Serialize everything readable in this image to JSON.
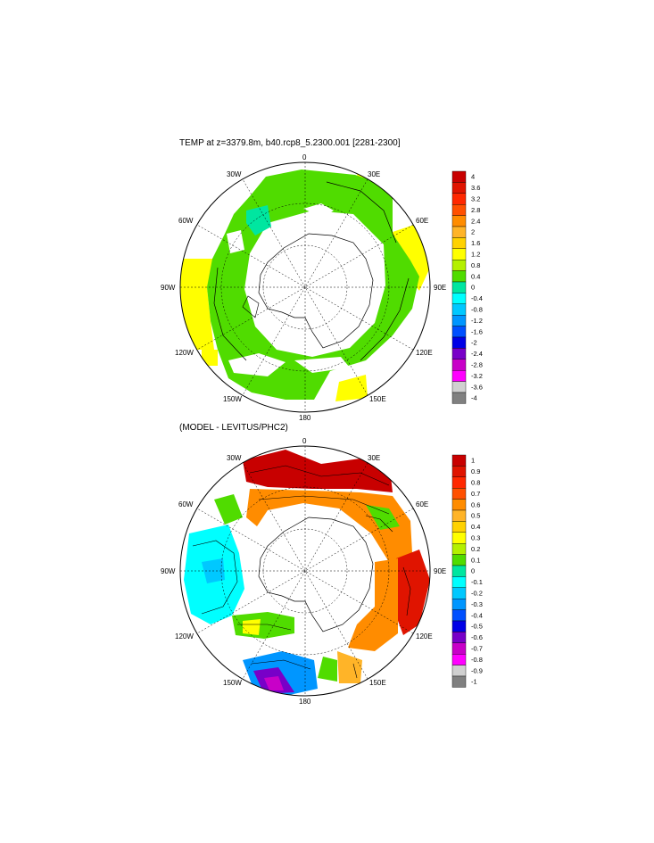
{
  "panels": [
    {
      "title": "TEMP at z=3379.8m, b40.rcp8_5.2300.001 [2281-2300]",
      "colorbar_labels": [
        "4",
        "3.6",
        "3.2",
        "2.8",
        "2.4",
        "2",
        "1.6",
        "1.2",
        "0.8",
        "0.4",
        "0",
        "-0.4",
        "-0.8",
        "-1.2",
        "-1.6",
        "-2",
        "-2.4",
        "-2.8",
        "-3.2",
        "-3.6",
        "-4"
      ]
    },
    {
      "title": "(MODEL - LEVITUS/PHC2)",
      "colorbar_labels": [
        "1",
        "0.9",
        "0.8",
        "0.7",
        "0.6",
        "0.5",
        "0.4",
        "0.3",
        "0.2",
        "0.1",
        "0",
        "-0.1",
        "-0.2",
        "-0.3",
        "-0.4",
        "-0.5",
        "-0.6",
        "-0.7",
        "-0.8",
        "-0.9",
        "-1"
      ]
    }
  ],
  "longitude_labels": {
    "lon_0": "0",
    "lon_30e": "30E",
    "lon_60e": "60E",
    "lon_90e": "90E",
    "lon_120e": "120E",
    "lon_150e": "150E",
    "lon_180": "180",
    "lon_150w": "150W",
    "lon_120w": "120W",
    "lon_90w": "90W",
    "lon_60w": "60W",
    "lon_30w": "30W"
  },
  "colors": {
    "palette": [
      "#c80000",
      "#e01400",
      "#ff2800",
      "#ff5000",
      "#ff8c00",
      "#ffb428",
      "#ffd200",
      "#ffff00",
      "#b4f000",
      "#50dc00",
      "#00e6a0",
      "#00ffff",
      "#00c8ff",
      "#0096ff",
      "#0050ff",
      "#0000e6",
      "#7800c8",
      "#c800c8",
      "#ff00ff",
      "#d0d0d0",
      "#808080"
    ]
  }
}
